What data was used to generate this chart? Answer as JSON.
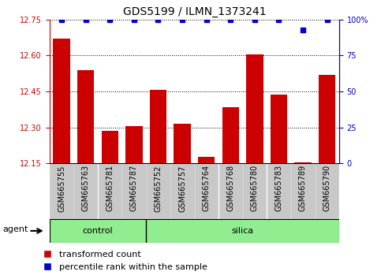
{
  "title": "GDS5199 / ILMN_1373241",
  "samples": [
    "GSM665755",
    "GSM665763",
    "GSM665781",
    "GSM665787",
    "GSM665752",
    "GSM665757",
    "GSM665764",
    "GSM665768",
    "GSM665780",
    "GSM665783",
    "GSM665789",
    "GSM665790"
  ],
  "transformed_count": [
    12.67,
    12.54,
    12.285,
    12.305,
    12.455,
    12.315,
    12.175,
    12.385,
    12.605,
    12.435,
    12.155,
    12.52
  ],
  "percentile_rank": [
    100,
    100,
    100,
    100,
    100,
    100,
    100,
    100,
    100,
    100,
    93,
    100
  ],
  "control_indices": [
    0,
    1,
    2,
    3
  ],
  "silica_indices": [
    4,
    5,
    6,
    7,
    8,
    9,
    10,
    11
  ],
  "agent_label": "agent",
  "ylim_left": [
    12.15,
    12.75
  ],
  "ylim_right": [
    0,
    100
  ],
  "yticks_left": [
    12.15,
    12.3,
    12.45,
    12.6,
    12.75
  ],
  "yticks_right": [
    0,
    25,
    50,
    75,
    100
  ],
  "bar_color": "#CC0000",
  "dot_color": "#0000CC",
  "bar_width": 0.7,
  "legend_bar_label": "transformed count",
  "legend_dot_label": "percentile rank within the sample",
  "tick_bg_color": "#C8C8C8",
  "group_color": "#90EE90",
  "plot_bg": "#FFFFFF",
  "title_fontsize": 10,
  "tick_fontsize": 7,
  "label_fontsize": 8,
  "legend_fontsize": 8
}
